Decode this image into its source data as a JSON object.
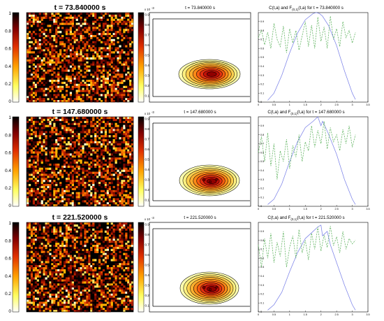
{
  "rows": [
    {
      "map": {
        "title": "t = 73.840000 s",
        "colorbar_ticks": [
          "1",
          "0.8",
          "0.6",
          "0.4",
          "0.2",
          "0"
        ]
      },
      "contour": {
        "title": "t = 73.840000 s",
        "colorbar_exponent": "x 10",
        "colorbar_exponent_power": "-3",
        "colorbar_ticks": [
          "0.9",
          "0.8",
          "0.7",
          "0.6",
          "0.5",
          "0.4",
          "0.3",
          "0.2",
          "0.1"
        ]
      },
      "profile": {
        "title_main": "C(t,a) and F",
        "title_sub": "(0,1)",
        "title_rest": "(t,a) for t = 73.840000 s"
      }
    },
    {
      "map": {
        "title": "t = 147.680000 s",
        "colorbar_ticks": [
          "1",
          "0.8",
          "0.6",
          "0.4",
          "0.2",
          "0"
        ]
      },
      "contour": {
        "title": "t = 147.680000 s",
        "colorbar_exponent": "x 10",
        "colorbar_exponent_power": "-3",
        "colorbar_ticks": [
          "0.9",
          "0.8",
          "0.7",
          "0.6",
          "0.5",
          "0.4",
          "0.3",
          "0.2",
          "0.1"
        ]
      },
      "profile": {
        "title_main": "C(t,a) and F",
        "title_sub": "(0,1)",
        "title_rest": "(t,a) for t = 147.680000 s"
      }
    },
    {
      "map": {
        "title": "t = 221.520000 s",
        "colorbar_ticks": [
          "1",
          "0.8",
          "0.6",
          "0.4",
          "0.2",
          "0"
        ]
      },
      "contour": {
        "title": "t = 221.520000 s",
        "colorbar_exponent": "x 10",
        "colorbar_exponent_power": "-3",
        "colorbar_ticks": [
          "0.9",
          "0.8",
          "0.7",
          "0.6",
          "0.5",
          "0.4",
          "0.3",
          "0.2",
          "0.1"
        ]
      },
      "profile": {
        "title_main": "C(t,a) and F",
        "title_sub": "(0,1)",
        "title_rest": "(t,a) for t = 221.520000 s"
      }
    }
  ],
  "profile_axes": {
    "x_ticks": [
      "0",
      "0.5",
      "1",
      "1.5",
      "2",
      "2.5",
      "3",
      "3.5"
    ],
    "y_ticks": [
      "0.9",
      "0.8",
      "0.7",
      "0.6",
      "0.5",
      "0.4",
      "0.3",
      "0.2",
      "0.1",
      "0"
    ]
  },
  "colors": {
    "map_palette": [
      "#000000",
      "#3a0000",
      "#7a0a00",
      "#b51e00",
      "#e04a00",
      "#f57a00",
      "#ffb000",
      "#ffe05a",
      "#ffffd0"
    ],
    "contour_palette": [
      "#ffffb0",
      "#fff080",
      "#ffd050",
      "#ffb030",
      "#ff8a18",
      "#f45a10",
      "#e03010",
      "#c01008",
      "#900000"
    ],
    "c_curve": "#7b82e8",
    "f_curve": "#5fb35f"
  },
  "chart_data": [
    {
      "type": "heatmap",
      "title": "t = 73.840000 s",
      "colorbar_range": [
        0,
        1
      ]
    },
    {
      "type": "heatmap",
      "title": "t = 73.840000 s",
      "colorbar_range": [
        0,
        0.001
      ],
      "colorbar_scale": "x 10^-3"
    },
    {
      "type": "line",
      "title": "C(t,a) and F_(0,1)(t,a) for t = 73.840000 s",
      "xlim": [
        0,
        3.5
      ],
      "ylim": [
        0,
        1
      ],
      "series": [
        {
          "style": "solid",
          "x": [
            0.3,
            0.5,
            0.75,
            1.0,
            1.25,
            1.5,
            1.75,
            1.85,
            1.95,
            2.05,
            2.25,
            2.5,
            2.75,
            3.0,
            3.1
          ],
          "values": [
            0.02,
            0.1,
            0.3,
            0.55,
            0.77,
            0.92,
            0.99,
            1.0,
            0.99,
            0.96,
            0.85,
            0.63,
            0.35,
            0.1,
            0.03
          ]
        },
        {
          "style": "dashed",
          "x": [
            0,
            0.1,
            0.2,
            0.3,
            0.4,
            0.5,
            0.6,
            0.7,
            0.8,
            0.9,
            1.0,
            1.1,
            1.2,
            1.3,
            1.4,
            1.5,
            1.6,
            1.7,
            1.8,
            1.9,
            2.0,
            2.1,
            2.2,
            2.3,
            2.4,
            2.5,
            2.6,
            2.7,
            2.8,
            2.9,
            3.0,
            3.1
          ],
          "values": [
            0.72,
            0.8,
            0.64,
            0.78,
            0.6,
            0.88,
            0.7,
            0.62,
            0.85,
            0.55,
            0.82,
            0.66,
            0.8,
            0.58,
            0.74,
            0.9,
            0.62,
            0.86,
            0.6,
            0.95,
            0.68,
            0.84,
            0.6,
            0.96,
            0.7,
            0.82,
            0.62,
            0.9,
            0.72,
            0.8,
            0.66,
            0.78
          ]
        }
      ]
    },
    {
      "type": "heatmap",
      "title": "t = 147.680000 s",
      "colorbar_range": [
        0,
        1
      ]
    },
    {
      "type": "heatmap",
      "title": "t = 147.680000 s",
      "colorbar_range": [
        0,
        0.001
      ],
      "colorbar_scale": "x 10^-3"
    },
    {
      "type": "line",
      "title": "C(t,a) and F_(0,1)(t,a) for t = 147.680000 s",
      "xlim": [
        0,
        3.5
      ],
      "ylim": [
        0,
        1
      ],
      "series": [
        {
          "style": "solid",
          "x": [
            0.3,
            0.5,
            0.75,
            1.0,
            1.25,
            1.5,
            1.75,
            1.9,
            2.0,
            2.05,
            2.15,
            2.25,
            2.5,
            2.75,
            3.0,
            3.1
          ],
          "values": [
            0.02,
            0.08,
            0.25,
            0.5,
            0.72,
            0.88,
            0.95,
            1.0,
            0.9,
            0.95,
            0.88,
            0.8,
            0.58,
            0.3,
            0.08,
            0.02
          ]
        },
        {
          "style": "dashed",
          "x": [
            0,
            0.1,
            0.2,
            0.3,
            0.4,
            0.5,
            0.6,
            0.7,
            0.8,
            0.9,
            1.0,
            1.1,
            1.2,
            1.3,
            1.4,
            1.5,
            1.6,
            1.7,
            1.8,
            1.9,
            2.0,
            2.1,
            2.2,
            2.3,
            2.4,
            2.5,
            2.6,
            2.7,
            2.8,
            2.9,
            3.0,
            3.1
          ],
          "values": [
            0.6,
            0.78,
            0.5,
            0.82,
            0.45,
            0.7,
            0.3,
            0.62,
            0.5,
            0.75,
            0.42,
            0.68,
            0.55,
            0.8,
            0.5,
            0.72,
            0.62,
            0.9,
            0.66,
            0.85,
            0.7,
            0.95,
            0.64,
            0.88,
            0.72,
            0.8,
            0.62,
            0.86,
            0.7,
            0.9,
            0.66,
            0.8
          ]
        }
      ]
    },
    {
      "type": "heatmap",
      "title": "t = 221.520000 s",
      "colorbar_range": [
        0,
        1
      ]
    },
    {
      "type": "heatmap",
      "title": "t = 221.520000 s",
      "colorbar_range": [
        0,
        0.001
      ],
      "colorbar_scale": "x 10^-3"
    },
    {
      "type": "line",
      "title": "C(t,a) and F_(0,1)(t,a) for t = 221.520000 s",
      "xlim": [
        0,
        3.5
      ],
      "ylim": [
        0,
        1
      ],
      "series": [
        {
          "style": "solid",
          "x": [
            0.3,
            0.5,
            0.75,
            1.0,
            1.25,
            1.5,
            1.75,
            1.9,
            2.0,
            2.05,
            2.2,
            2.3,
            2.5,
            2.75,
            3.0,
            3.1
          ],
          "values": [
            0.02,
            0.08,
            0.22,
            0.45,
            0.66,
            0.82,
            0.9,
            0.95,
            0.97,
            0.85,
            0.9,
            0.75,
            0.55,
            0.3,
            0.08,
            0.02
          ]
        },
        {
          "style": "dashed",
          "x": [
            0,
            0.1,
            0.2,
            0.3,
            0.4,
            0.5,
            0.6,
            0.7,
            0.8,
            0.9,
            1.0,
            1.1,
            1.2,
            1.3,
            1.4,
            1.5,
            1.6,
            1.7,
            1.8,
            1.9,
            2.0,
            2.1,
            2.2,
            2.3,
            2.4,
            2.5,
            2.6,
            2.7,
            2.8,
            2.9,
            3.0,
            3.1
          ],
          "values": [
            0.75,
            0.5,
            0.82,
            0.6,
            0.88,
            0.55,
            0.78,
            0.62,
            0.9,
            0.5,
            0.72,
            0.85,
            0.6,
            0.92,
            0.66,
            0.8,
            0.58,
            0.88,
            0.7,
            0.95,
            0.68,
            0.86,
            0.72,
            0.96,
            0.74,
            0.84,
            0.66,
            0.9,
            0.7,
            0.82,
            0.76,
            0.8
          ]
        }
      ]
    }
  ]
}
